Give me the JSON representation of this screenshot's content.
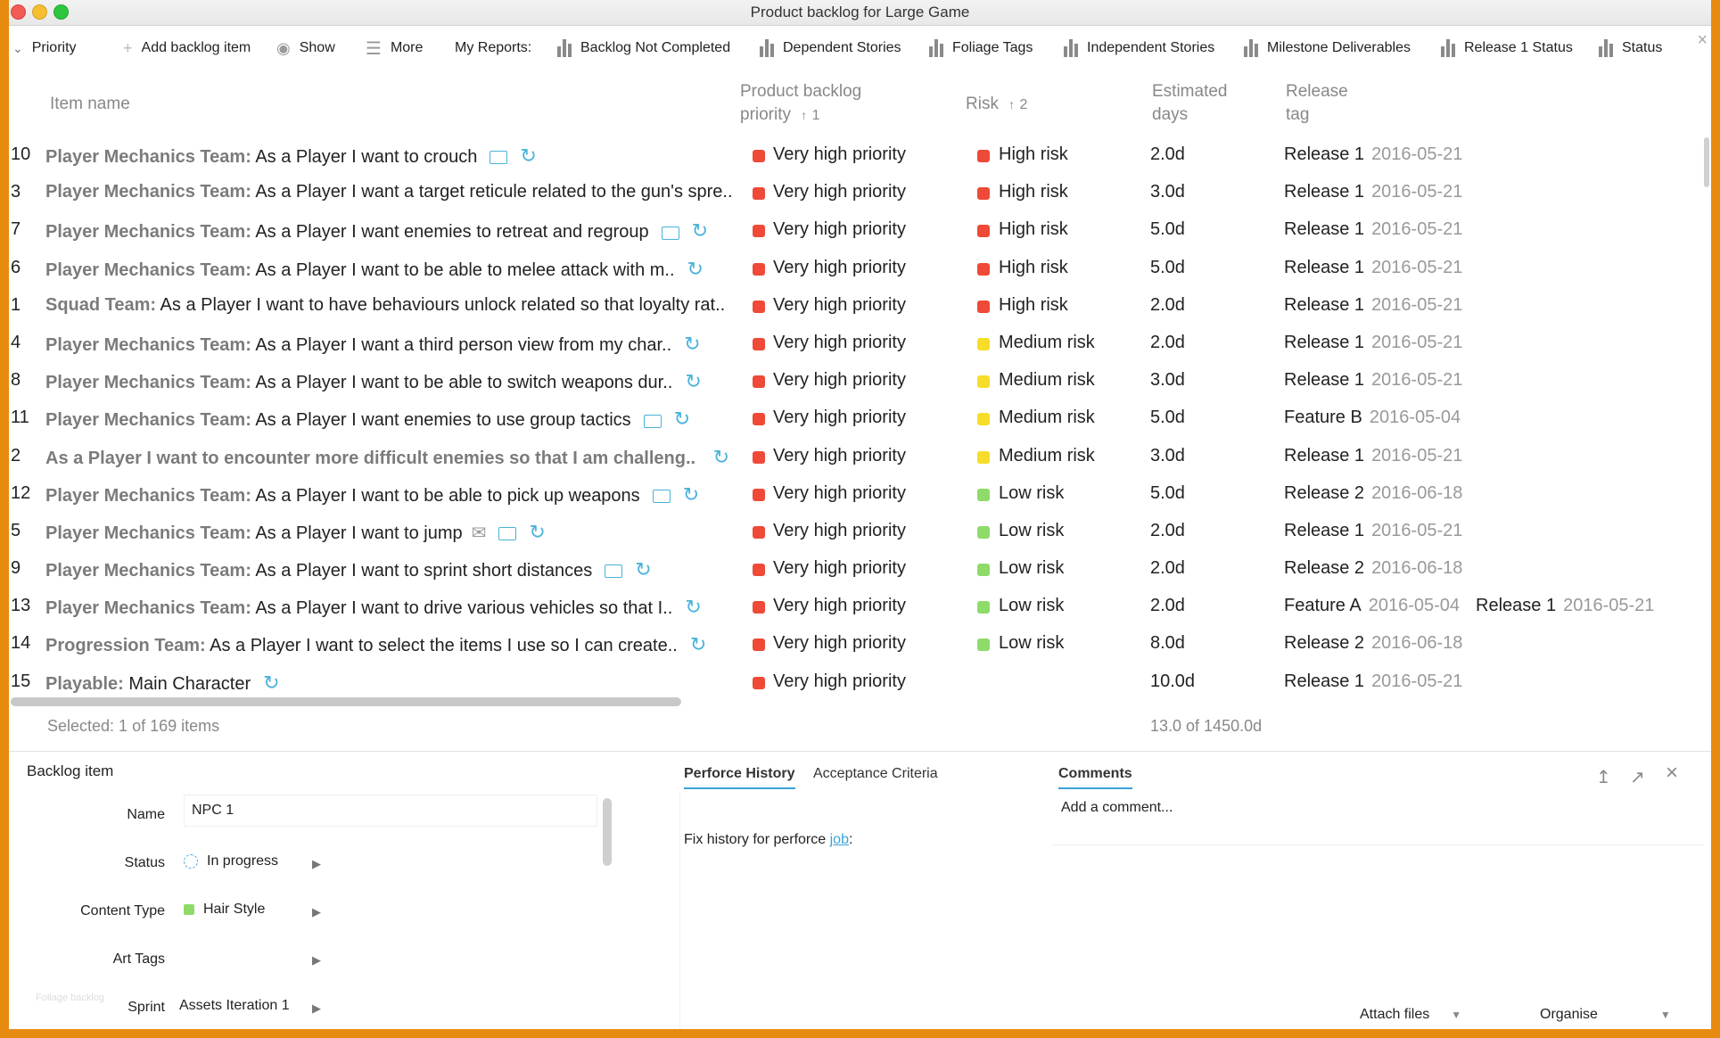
{
  "window": {
    "title": "Product backlog for Large Game"
  },
  "toolbar": {
    "priority_label": "Priority",
    "add_label": "Add backlog item",
    "show_label": "Show",
    "more_label": "More",
    "reports_label": "My Reports:",
    "reports": [
      "Backlog Not Completed",
      "Dependent Stories",
      "Foliage Tags",
      "Independent Stories",
      "Milestone Deliverables",
      "Release 1 Status",
      "Status"
    ]
  },
  "columns": {
    "item_name": "Item name",
    "priority": "Product backlog priority",
    "priority_sort": "1",
    "risk": "Risk",
    "risk_sort": "2",
    "days": "Estimated days",
    "release": "Release tag"
  },
  "colors": {
    "very_high": "#ee4a37",
    "high_risk": "#ee4a37",
    "medium_risk": "#f6dd2a",
    "low_risk": "#8edb69",
    "accent": "#3aa3d8"
  },
  "rows": [
    {
      "id": "10",
      "team": "Player Mechanics Team:",
      "story": "As a Player I want to crouch",
      "comment": true,
      "mail": false,
      "cycle": true,
      "priority": "Very high priority",
      "risk": "High risk",
      "risk_level": "high",
      "days": "2.0d",
      "release": "Release 1",
      "date": "2016-05-21"
    },
    {
      "id": "3",
      "team": "Player Mechanics Team:",
      "story": "As a Player I want a target reticule related to the gun's spre..",
      "comment": false,
      "mail": false,
      "cycle": false,
      "priority": "Very high priority",
      "risk": "High risk",
      "risk_level": "high",
      "days": "3.0d",
      "release": "Release 1",
      "date": "2016-05-21"
    },
    {
      "id": "7",
      "team": "Player Mechanics Team:",
      "story": "As a Player I want enemies to retreat and regroup",
      "comment": true,
      "mail": false,
      "cycle": true,
      "priority": "Very high priority",
      "risk": "High risk",
      "risk_level": "high",
      "days": "5.0d",
      "release": "Release 1",
      "date": "2016-05-21"
    },
    {
      "id": "6",
      "team": "Player Mechanics Team:",
      "story": "As a Player I want to be able to melee attack with m..",
      "comment": false,
      "mail": false,
      "cycle": true,
      "priority": "Very high priority",
      "risk": "High risk",
      "risk_level": "high",
      "days": "5.0d",
      "release": "Release 1",
      "date": "2016-05-21"
    },
    {
      "id": "1",
      "team": "Squad Team:",
      "story": "As a Player I want to have behaviours unlock related so that loyalty rat..",
      "comment": false,
      "mail": false,
      "cycle": false,
      "priority": "Very high priority",
      "risk": "High risk",
      "risk_level": "high",
      "days": "2.0d",
      "release": "Release 1",
      "date": "2016-05-21"
    },
    {
      "id": "4",
      "team": "Player Mechanics Team:",
      "story": "As a Player I want a third person view from my char..",
      "comment": false,
      "mail": false,
      "cycle": true,
      "priority": "Very high priority",
      "risk": "Medium risk",
      "risk_level": "medium",
      "days": "2.0d",
      "release": "Release 1",
      "date": "2016-05-21"
    },
    {
      "id": "8",
      "team": "Player Mechanics Team:",
      "story": "As a Player I want to be able to switch weapons dur..",
      "comment": false,
      "mail": false,
      "cycle": true,
      "priority": "Very high priority",
      "risk": "Medium risk",
      "risk_level": "medium",
      "days": "3.0d",
      "release": "Release 1",
      "date": "2016-05-21"
    },
    {
      "id": "11",
      "team": "Player Mechanics Team:",
      "story": "As a Player I want enemies to use group tactics",
      "comment": true,
      "mail": false,
      "cycle": true,
      "priority": "Very high priority",
      "risk": "Medium risk",
      "risk_level": "medium",
      "days": "5.0d",
      "release": "Feature B",
      "date": "2016-05-04"
    },
    {
      "id": "2",
      "team": "As a Player I want to encounter more difficult enemies so that I am challeng..",
      "story": "",
      "comment": false,
      "mail": false,
      "cycle": true,
      "priority": "Very high priority",
      "risk": "Medium risk",
      "risk_level": "medium",
      "days": "3.0d",
      "release": "Release 1",
      "date": "2016-05-21"
    },
    {
      "id": "12",
      "team": "Player Mechanics Team:",
      "story": "As a Player I want to be able to pick up weapons",
      "comment": true,
      "mail": false,
      "cycle": true,
      "priority": "Very high priority",
      "risk": "Low risk",
      "risk_level": "low",
      "days": "5.0d",
      "release": "Release 2",
      "date": "2016-06-18"
    },
    {
      "id": "5",
      "team": "Player Mechanics Team:",
      "story": "As a Player I want to jump",
      "comment": true,
      "mail": true,
      "cycle": true,
      "priority": "Very high priority",
      "risk": "Low risk",
      "risk_level": "low",
      "days": "2.0d",
      "release": "Release 1",
      "date": "2016-05-21"
    },
    {
      "id": "9",
      "team": "Player Mechanics Team:",
      "story": "As a Player I want to sprint short distances",
      "comment": true,
      "mail": false,
      "cycle": true,
      "priority": "Very high priority",
      "risk": "Low risk",
      "risk_level": "low",
      "days": "2.0d",
      "release": "Release 2",
      "date": "2016-06-18"
    },
    {
      "id": "13",
      "team": "Player Mechanics Team:",
      "story": "As a Player I want to drive various vehicles so that I..",
      "comment": false,
      "mail": false,
      "cycle": true,
      "priority": "Very high priority",
      "risk": "Low risk",
      "risk_level": "low",
      "days": "2.0d",
      "release": "Feature A",
      "date": "2016-05-04",
      "release2": "Release 1",
      "date2": "2016-05-21"
    },
    {
      "id": "14",
      "team": "Progression Team:",
      "story": "As a Player I want to select the items I use so I can create..",
      "comment": false,
      "mail": false,
      "cycle": true,
      "priority": "Very high priority",
      "risk": "Low risk",
      "risk_level": "low",
      "days": "8.0d",
      "release": "Release 2",
      "date": "2016-06-18"
    },
    {
      "id": "15",
      "team": "Playable:",
      "story": "Main Character",
      "comment": false,
      "mail": false,
      "cycle": true,
      "priority": "Very high priority",
      "risk": "",
      "risk_level": "none",
      "days": "10.0d",
      "release": "Release 1",
      "date": "2016-05-21"
    }
  ],
  "footer": {
    "selected": "Selected: 1 of 169 items",
    "totals": "13.0 of 1450.0d"
  },
  "detail": {
    "title": "Backlog item",
    "fields": {
      "name_label": "Name",
      "name_value": "NPC 1",
      "status_label": "Status",
      "status_value": "In progress",
      "content_type_label": "Content Type",
      "content_type_value": "Hair Style",
      "art_tags_label": "Art Tags",
      "art_tags_value": "",
      "sprint_label": "Sprint",
      "sprint_value": "Assets Iteration 1"
    },
    "faint": "Foliage backlog"
  },
  "tabs": {
    "perforce": "Perforce History",
    "acceptance": "Acceptance Criteria",
    "comments": "Comments"
  },
  "history": {
    "text": "Fix history for perforce",
    "link": "job",
    "suffix": ":"
  },
  "comments": {
    "placeholder": "Add a comment..."
  },
  "buttons": {
    "attach": "Attach files",
    "organise": "Organise"
  }
}
